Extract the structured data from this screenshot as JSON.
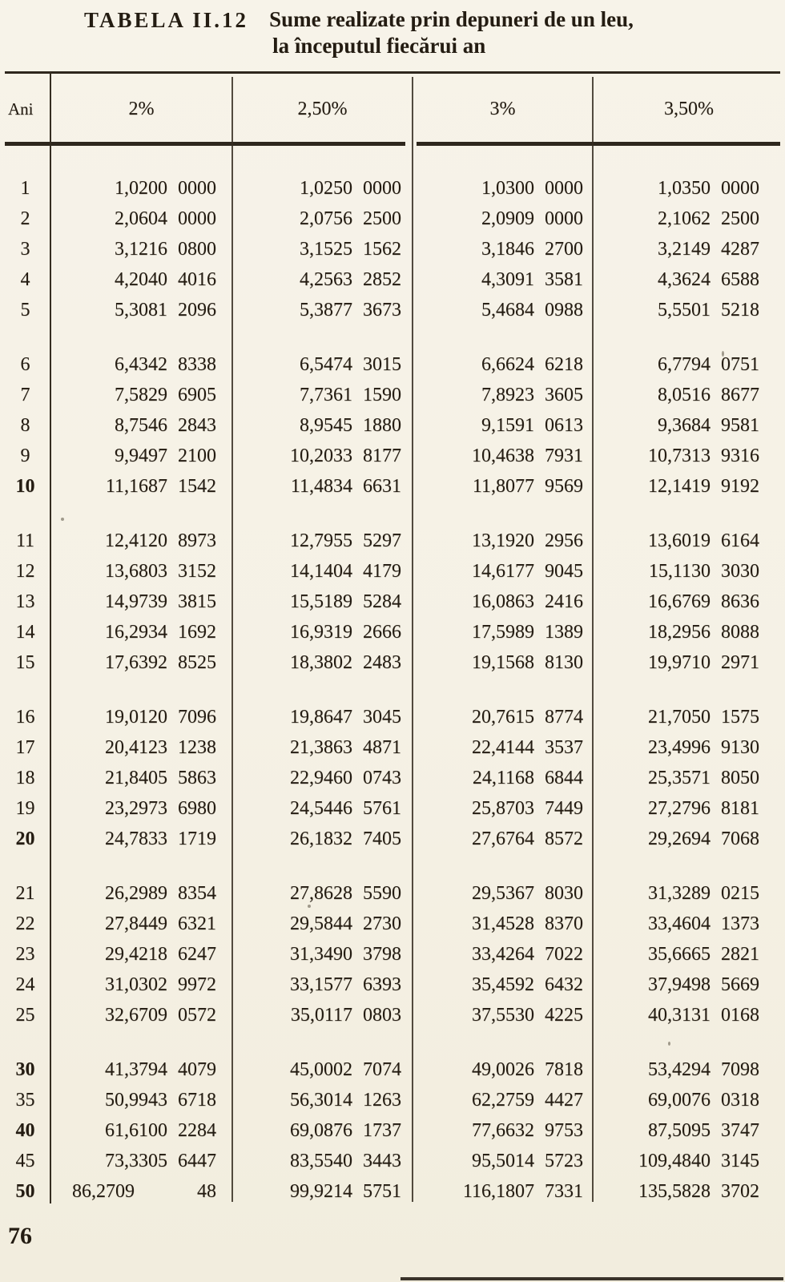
{
  "page": {
    "title_label": "TABELA II.12",
    "title_line1": "Sume realizate prin depuneri de un leu,",
    "title_line2": "la începutul fiecărui an",
    "page_number": "76"
  },
  "colors": {
    "paper": "#f5f1e5",
    "ink": "#241c12"
  },
  "table": {
    "columns": [
      "Ani",
      "2%",
      "2,50%",
      "3%",
      "3,50%"
    ],
    "groups": [
      {
        "rows": [
          {
            "ani": "1",
            "bold": false,
            "values": [
              "1,0200 0000",
              "1,0250 0000",
              "1,0300 0000",
              "1,0350 0000"
            ]
          },
          {
            "ani": "2",
            "bold": false,
            "values": [
              "2,0604 0000",
              "2,0756 2500",
              "2,0909 0000",
              "2,1062 2500"
            ]
          },
          {
            "ani": "3",
            "bold": false,
            "values": [
              "3,1216 0800",
              "3,1525 1562",
              "3,1846 2700",
              "3,2149 4287"
            ]
          },
          {
            "ani": "4",
            "bold": false,
            "values": [
              "4,2040 4016",
              "4,2563 2852",
              "4,3091 3581",
              "4,3624 6588"
            ]
          },
          {
            "ani": "5",
            "bold": false,
            "values": [
              "5,3081 2096",
              "5,3877 3673",
              "5,4684 0988",
              "5,5501 5218"
            ]
          }
        ]
      },
      {
        "rows": [
          {
            "ani": "6",
            "bold": false,
            "values": [
              "6,4342 8338",
              "6,5474 3015",
              "6,6624 6218",
              "6,7794 0751"
            ]
          },
          {
            "ani": "7",
            "bold": false,
            "values": [
              "7,5829 6905",
              "7,7361 1590",
              "7,8923 3605",
              "8,0516 8677"
            ]
          },
          {
            "ani": "8",
            "bold": false,
            "values": [
              "8,7546 2843",
              "8,9545 1880",
              "9,1591 0613",
              "9,3684 9581"
            ]
          },
          {
            "ani": "9",
            "bold": false,
            "values": [
              "9,9497 2100",
              "10,2033 8177",
              "10,4638 7931",
              "10,7313 9316"
            ]
          },
          {
            "ani": "10",
            "bold": true,
            "values": [
              "11,1687 1542",
              "11,4834 6631",
              "11,8077 9569",
              "12,1419 9192"
            ]
          }
        ]
      },
      {
        "rows": [
          {
            "ani": "11",
            "bold": false,
            "values": [
              "12,4120 8973",
              "12,7955 5297",
              "13,1920 2956",
              "13,6019 6164"
            ]
          },
          {
            "ani": "12",
            "bold": false,
            "values": [
              "13,6803 3152",
              "14,1404 4179",
              "14,6177 9045",
              "15,1130 3030"
            ]
          },
          {
            "ani": "13",
            "bold": false,
            "values": [
              "14,9739 3815",
              "15,5189 5284",
              "16,0863 2416",
              "16,6769 8636"
            ]
          },
          {
            "ani": "14",
            "bold": false,
            "values": [
              "16,2934 1692",
              "16,9319 2666",
              "17,5989 1389",
              "18,2956 8088"
            ]
          },
          {
            "ani": "15",
            "bold": false,
            "values": [
              "17,6392 8525",
              "18,3802 2483",
              "19,1568 8130",
              "19,9710 2971"
            ]
          }
        ]
      },
      {
        "rows": [
          {
            "ani": "16",
            "bold": false,
            "values": [
              "19,0120 7096",
              "19,8647 3045",
              "20,7615 8774",
              "21,7050 1575"
            ]
          },
          {
            "ani": "17",
            "bold": false,
            "values": [
              "20,4123 1238",
              "21,3863 4871",
              "22,4144 3537",
              "23,4996 9130"
            ]
          },
          {
            "ani": "18",
            "bold": false,
            "values": [
              "21,8405 5863",
              "22,9460 0743",
              "24,1168 6844",
              "25,3571 8050"
            ]
          },
          {
            "ani": "19",
            "bold": false,
            "values": [
              "23,2973 6980",
              "24,5446 5761",
              "25,8703 7449",
              "27,2796 8181"
            ]
          },
          {
            "ani": "20",
            "bold": true,
            "values": [
              "24,7833 1719",
              "26,1832 7405",
              "27,6764 8572",
              "29,2694 7068"
            ]
          }
        ]
      },
      {
        "rows": [
          {
            "ani": "21",
            "bold": false,
            "values": [
              "26,2989 8354",
              "27,8628 5590",
              "29,5367 8030",
              "31,3289 0215"
            ]
          },
          {
            "ani": "22",
            "bold": false,
            "values": [
              "27,8449 6321",
              "29,5844 2730",
              "31,4528 8370",
              "33,4604 1373"
            ]
          },
          {
            "ani": "23",
            "bold": false,
            "values": [
              "29,4218 6247",
              "31,3490 3798",
              "33,4264 7022",
              "35,6665 2821"
            ]
          },
          {
            "ani": "24",
            "bold": false,
            "values": [
              "31,0302 9972",
              "33,1577 6393",
              "35,4592 6432",
              "37,9498 5669"
            ]
          },
          {
            "ani": "25",
            "bold": false,
            "values": [
              "32,6709 0572",
              "35,0117 0803",
              "37,5530 4225",
              "40,3131 0168"
            ]
          }
        ]
      },
      {
        "rows": [
          {
            "ani": "30",
            "bold": true,
            "values": [
              "41,3794 4079",
              "45,0002 7074",
              "49,0026 7818",
              "53,4294 7098"
            ]
          },
          {
            "ani": "35",
            "bold": false,
            "values": [
              "50,9943 6718",
              "56,3014 1263",
              "62,2759 4427",
              "69,0076 0318"
            ]
          },
          {
            "ani": "40",
            "bold": true,
            "values": [
              "61,6100 2284",
              "69,0876 1737",
              "77,6632 9753",
              "87,5095 3747"
            ]
          },
          {
            "ani": "45",
            "bold": false,
            "values": [
              "73,3305 6447",
              "83,5540 3443",
              "95,5014 5723",
              "109,4840 3145"
            ]
          },
          {
            "ani": "50",
            "bold": true,
            "values": [
              "86,2709      48",
              "99,9214 5751",
              "116,1807 7331",
              "135,5828 3702"
            ]
          }
        ]
      }
    ]
  }
}
